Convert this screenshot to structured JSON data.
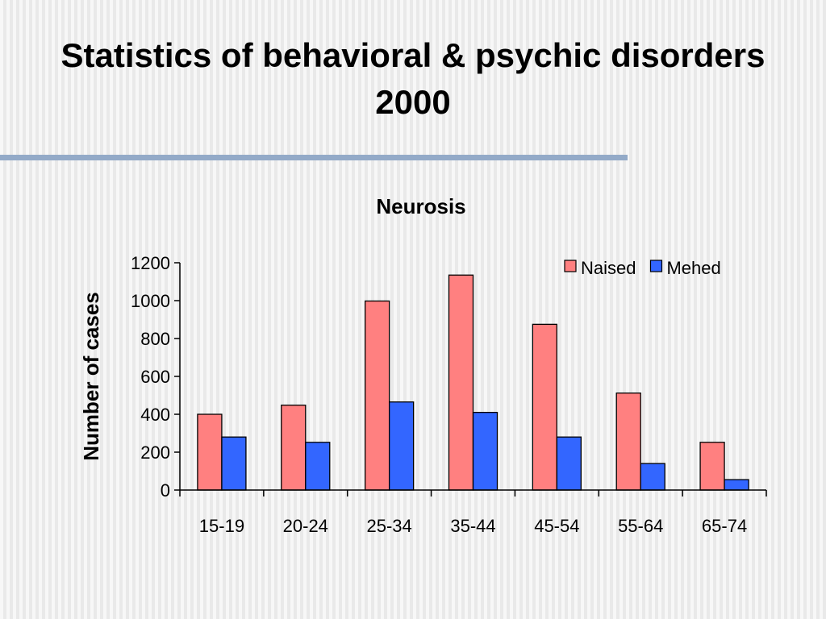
{
  "slide": {
    "title_line1": "Statistics of behavioral & psychic disorders",
    "title_line2": "2000"
  },
  "colors": {
    "naised": "#ff8080",
    "mehed": "#3366ff",
    "title_rule": "#93aac8"
  },
  "chart_data": {
    "type": "bar",
    "title": "Neurosis",
    "xlabel": "",
    "ylabel": "Number of cases",
    "categories": [
      "15-19",
      "20-24",
      "25-34",
      "35-44",
      "45-54",
      "55-64",
      "65-74"
    ],
    "series": [
      {
        "name": "Naised",
        "values": [
          400,
          448,
          998,
          1135,
          875,
          512,
          252
        ]
      },
      {
        "name": "Mehed",
        "values": [
          280,
          252,
          465,
          410,
          280,
          140,
          55
        ]
      }
    ],
    "ylim": [
      0,
      1200
    ],
    "yticks": [
      0,
      200,
      400,
      600,
      800,
      1000,
      1200
    ],
    "legend_position": "top-right",
    "grid": false
  }
}
